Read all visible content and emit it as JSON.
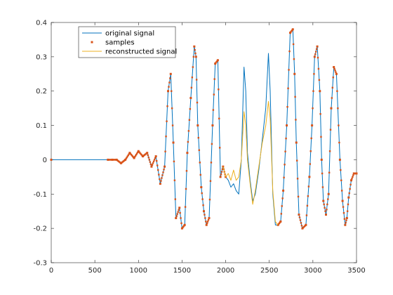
{
  "chart_data": {
    "type": "line",
    "title": "",
    "xlabel": "",
    "ylabel": "",
    "xlim": [
      0,
      3500
    ],
    "ylim": [
      -0.3,
      0.4
    ],
    "xticks": [
      0,
      500,
      1000,
      1500,
      2000,
      2500,
      3000,
      3500
    ],
    "yticks": [
      -0.3,
      -0.2,
      -0.1,
      0,
      0.1,
      0.2,
      0.3,
      0.4
    ],
    "grid": false,
    "legend_position": "top-left",
    "series": [
      {
        "name": "original signal",
        "style": "line",
        "color": "#0072BD",
        "x": [
          0,
          650,
          700,
          750,
          800,
          850,
          900,
          950,
          1000,
          1050,
          1100,
          1150,
          1200,
          1250,
          1300,
          1340,
          1370,
          1400,
          1430,
          1470,
          1500,
          1530,
          1560,
          1600,
          1640,
          1660,
          1680,
          1720,
          1750,
          1780,
          1810,
          1850,
          1880,
          1910,
          1940,
          1970,
          2000,
          2030,
          2060,
          2090,
          2120,
          2150,
          2180,
          2210,
          2230,
          2250,
          2280,
          2310,
          2340,
          2380,
          2420,
          2460,
          2490,
          2510,
          2540,
          2570,
          2600,
          2630,
          2660,
          2700,
          2740,
          2770,
          2790,
          2810,
          2840,
          2880,
          2920,
          2960,
          2990,
          3020,
          3050,
          3080,
          3100,
          3120,
          3150,
          3180,
          3210,
          3240,
          3270,
          3310,
          3340,
          3370,
          3390,
          3410,
          3440,
          3470,
          3500
        ],
        "y": [
          0,
          0,
          0,
          0,
          -0.01,
          0,
          0.02,
          0.005,
          0.025,
          0.01,
          0.02,
          -0.02,
          0.01,
          -0.07,
          -0.02,
          0.2,
          0.25,
          0.05,
          -0.17,
          -0.14,
          -0.2,
          -0.19,
          0.02,
          0.18,
          0.33,
          0.3,
          0.1,
          -0.08,
          -0.15,
          -0.19,
          -0.17,
          0.1,
          0.28,
          0.29,
          -0.05,
          -0.02,
          -0.05,
          -0.06,
          -0.08,
          -0.07,
          -0.09,
          -0.1,
          0.0,
          0.27,
          0.2,
          0.02,
          -0.06,
          -0.12,
          -0.1,
          -0.03,
          0.06,
          0.15,
          0.31,
          0.2,
          -0.1,
          -0.19,
          -0.19,
          -0.18,
          -0.09,
          0.1,
          0.37,
          0.38,
          0.25,
          0.05,
          -0.16,
          -0.2,
          -0.19,
          -0.05,
          0.1,
          0.3,
          0.33,
          0.2,
          0.0,
          -0.12,
          -0.16,
          -0.1,
          0.15,
          0.27,
          0.25,
          0.0,
          -0.12,
          -0.19,
          -0.17,
          -0.11,
          -0.06,
          -0.04,
          -0.04
        ]
      },
      {
        "name": "samples",
        "style": "markers",
        "color": "#D95319",
        "x": [
          0,
          650,
          700,
          750,
          800,
          850,
          900,
          950,
          1000,
          1050,
          1100,
          1150,
          1200,
          1250,
          1300,
          1340,
          1370,
          1400,
          1430,
          1470,
          1500,
          1530,
          1560,
          1600,
          1640,
          1660,
          1680,
          1720,
          1750,
          1780,
          1810,
          1850,
          1880,
          1910,
          1940,
          1970,
          2000,
          2600,
          2630,
          2660,
          2700,
          2740,
          2770,
          2790,
          2810,
          2840,
          2880,
          2920,
          2960,
          2990,
          3020,
          3050,
          3080,
          3100,
          3120,
          3150,
          3180,
          3210,
          3240,
          3270,
          3310,
          3340,
          3370,
          3390,
          3410,
          3440,
          3470,
          3500
        ],
        "y": [
          0,
          0,
          0,
          0,
          -0.01,
          0,
          0.02,
          0.005,
          0.025,
          0.01,
          0.02,
          -0.02,
          0.01,
          -0.07,
          -0.02,
          0.2,
          0.25,
          0.05,
          -0.17,
          -0.14,
          -0.2,
          -0.19,
          0.02,
          0.18,
          0.33,
          0.3,
          0.1,
          -0.08,
          -0.15,
          -0.19,
          -0.17,
          0.1,
          0.28,
          0.29,
          -0.05,
          -0.02,
          -0.05,
          -0.19,
          -0.18,
          -0.09,
          0.1,
          0.37,
          0.38,
          0.25,
          0.05,
          -0.16,
          -0.2,
          -0.19,
          -0.05,
          0.1,
          0.3,
          0.33,
          0.2,
          0.0,
          -0.12,
          -0.16,
          -0.1,
          0.15,
          0.27,
          0.25,
          0.0,
          -0.12,
          -0.19,
          -0.17,
          -0.11,
          -0.06,
          -0.04,
          -0.04
        ]
      },
      {
        "name": "reconstructed signal",
        "style": "line",
        "color": "#EDB120",
        "x": [
          1970,
          2000,
          2030,
          2060,
          2090,
          2120,
          2150,
          2180,
          2210,
          2230,
          2250,
          2280,
          2310,
          2340,
          2380,
          2420,
          2460,
          2490,
          2510,
          2540,
          2570,
          2600
        ],
        "y": [
          -0.02,
          -0.05,
          -0.04,
          -0.06,
          -0.03,
          -0.06,
          -0.05,
          0.0,
          0.14,
          0.1,
          0.0,
          -0.07,
          -0.13,
          -0.09,
          -0.02,
          0.05,
          0.1,
          0.17,
          0.12,
          -0.09,
          -0.18,
          -0.19
        ]
      }
    ]
  }
}
